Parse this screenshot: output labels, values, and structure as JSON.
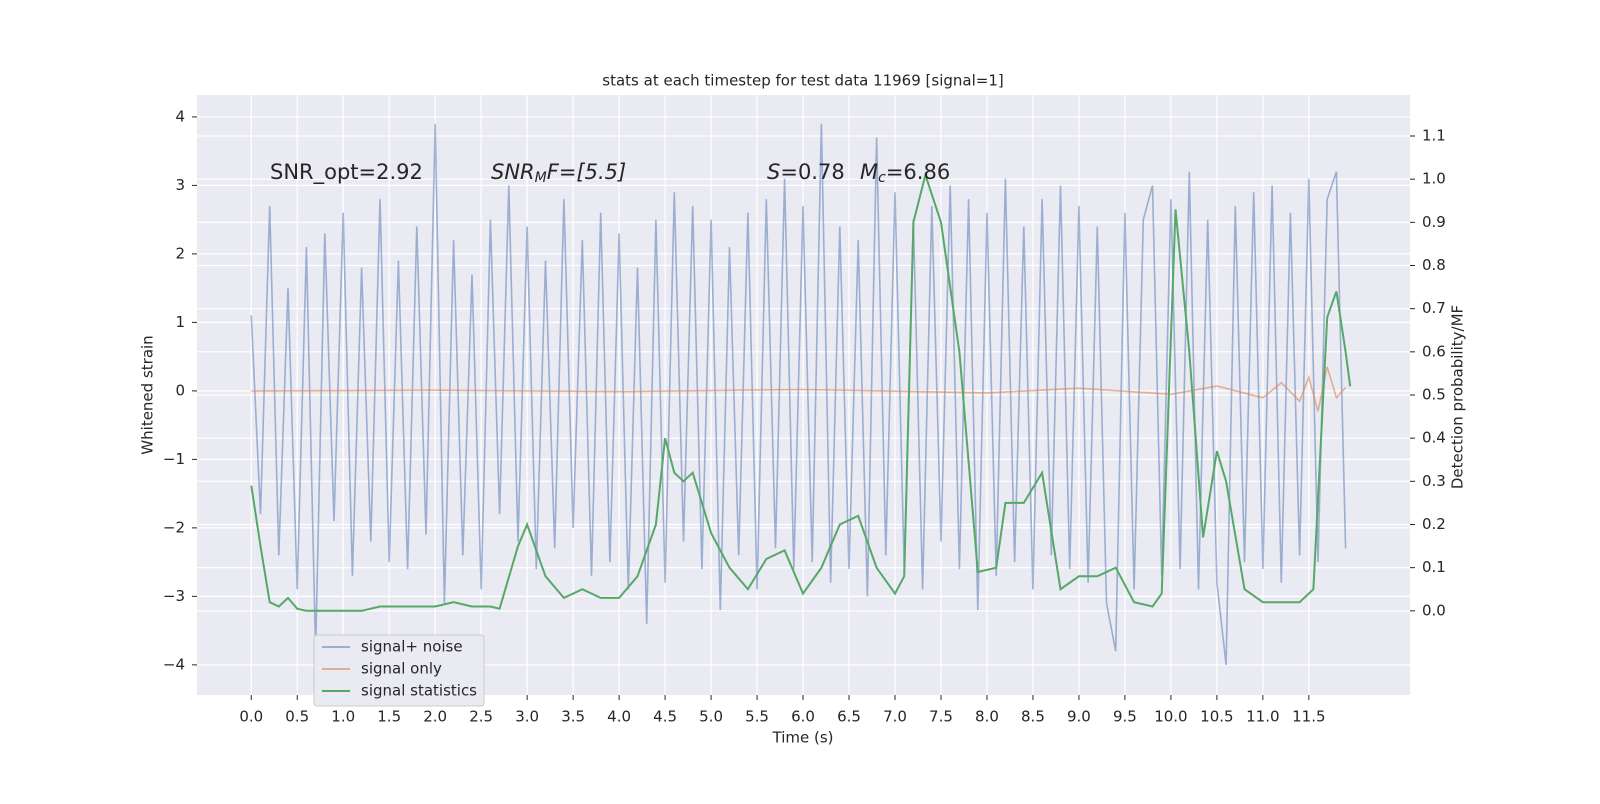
{
  "chart_data": {
    "type": "line",
    "title": "stats at each timestep for test data 11969 [signal=1]",
    "xlabel": "Time (s)",
    "ylabel": "Whitened strain",
    "y2label": "Detection probability/MF",
    "xlim": [
      -0.59,
      12.6
    ],
    "ylim": [
      -4.44,
      4.32
    ],
    "y2lim": [
      -0.195,
      1.195
    ],
    "xticks": [
      {
        "value": 0,
        "label": "0.0"
      },
      {
        "value": 0.5,
        "label": "0.5"
      },
      {
        "value": 1,
        "label": "1.0"
      },
      {
        "value": 1.5,
        "label": "1.5"
      },
      {
        "value": 2,
        "label": "2.0"
      },
      {
        "value": 2.5,
        "label": "2.5"
      },
      {
        "value": 3,
        "label": "3.0"
      },
      {
        "value": 3.5,
        "label": "3.5"
      },
      {
        "value": 4,
        "label": "4.0"
      },
      {
        "value": 4.5,
        "label": "4.5"
      },
      {
        "value": 5,
        "label": "5.0"
      },
      {
        "value": 5.5,
        "label": "5.5"
      },
      {
        "value": 6,
        "label": "6.0"
      },
      {
        "value": 6.5,
        "label": "6.5"
      },
      {
        "value": 7,
        "label": "7.0"
      },
      {
        "value": 7.5,
        "label": "7.5"
      },
      {
        "value": 8,
        "label": "8.0"
      },
      {
        "value": 8.5,
        "label": "8.5"
      },
      {
        "value": 9,
        "label": "9.0"
      },
      {
        "value": 9.5,
        "label": "9.5"
      },
      {
        "value": 10,
        "label": "10.0"
      },
      {
        "value": 10.5,
        "label": "10.5"
      },
      {
        "value": 11,
        "label": "11.0"
      },
      {
        "value": 11.5,
        "label": "11.5"
      }
    ],
    "yticks": [
      {
        "value": -4,
        "label": "−4"
      },
      {
        "value": -3,
        "label": "−3"
      },
      {
        "value": -2,
        "label": "−2"
      },
      {
        "value": -1,
        "label": "−1"
      },
      0,
      1,
      2,
      3,
      4
    ],
    "y2ticks": [
      {
        "value": 0,
        "label": "0.0"
      },
      0.1,
      0.2,
      0.3,
      0.4,
      0.5,
      0.6,
      0.7,
      0.8,
      0.9,
      {
        "value": 1,
        "label": "1.0"
      },
      1.1
    ],
    "grid": true,
    "annotations": [
      {
        "parts": [
          {
            "text": "SNR_opt=2.92",
            "style": "normal"
          }
        ]
      },
      {
        "parts": [
          {
            "text": "SNR",
            "style": "italic"
          },
          {
            "text": "M",
            "style": "italic-sub"
          },
          {
            "text": "F=[5.5]",
            "style": "italic-after-sub"
          }
        ]
      },
      {
        "parts": [
          {
            "text": "S",
            "style": "italic"
          },
          {
            "text": "=0.78",
            "style": "normal"
          }
        ]
      },
      {
        "parts": [
          {
            "text": "M",
            "style": "italic"
          },
          {
            "text": "c",
            "style": "italic-sub"
          },
          {
            "text": "=6.86",
            "style": "after-sub"
          }
        ]
      }
    ],
    "series": [
      {
        "name": "signal+ noise",
        "color": "#4c72b0",
        "opacity": 0.5,
        "x": [
          0,
          0.1,
          0.2,
          0.3,
          0.4,
          0.5,
          0.6,
          0.7,
          0.8,
          0.9,
          1,
          1.1,
          1.2,
          1.3,
          1.4,
          1.5,
          1.6,
          1.7,
          1.8,
          1.9,
          2,
          2.1,
          2.2,
          2.3,
          2.4,
          2.5,
          2.6,
          2.7,
          2.8,
          2.9,
          3,
          3.1,
          3.2,
          3.3,
          3.4,
          3.5,
          3.6,
          3.7,
          3.8,
          3.9,
          4,
          4.1,
          4.2,
          4.3,
          4.4,
          4.5,
          4.6,
          4.7,
          4.8,
          4.9,
          5,
          5.1,
          5.2,
          5.3,
          5.4,
          5.5,
          5.6,
          5.7,
          5.8,
          5.9,
          6,
          6.1,
          6.2,
          6.3,
          6.4,
          6.5,
          6.6,
          6.7,
          6.8,
          6.9,
          7,
          7.1,
          7.2,
          7.3,
          7.4,
          7.5,
          7.6,
          7.7,
          7.8,
          7.9,
          8,
          8.1,
          8.2,
          8.3,
          8.4,
          8.5,
          8.6,
          8.7,
          8.8,
          8.9,
          9,
          9.1,
          9.2,
          9.3,
          9.4,
          9.5,
          9.6,
          9.7,
          9.8,
          9.9,
          10,
          10.1,
          10.2,
          10.3,
          10.4,
          10.5,
          10.6,
          10.7,
          10.8,
          10.9,
          11,
          11.1,
          11.2,
          11.3,
          11.4,
          11.5,
          11.6,
          11.7,
          11.8,
          11.9
        ],
        "values": [
          1.1,
          -1.8,
          2.7,
          -2.4,
          1.5,
          -2.9,
          2.1,
          -3.8,
          2.3,
          -1.9,
          2.6,
          -2.7,
          1.8,
          -2.2,
          2.8,
          -2.5,
          1.9,
          -2.6,
          2.4,
          -2.1,
          3.9,
          -3.1,
          2.2,
          -2.4,
          1.7,
          -2.9,
          2.5,
          -1.8,
          3.0,
          -2.2,
          2.4,
          -2.6,
          1.9,
          -2.3,
          2.8,
          -2.0,
          2.2,
          -2.7,
          2.6,
          -2.5,
          2.3,
          -2.9,
          1.8,
          -3.4,
          2.5,
          -2.8,
          2.9,
          -2.2,
          2.7,
          -2.6,
          2.5,
          -3.2,
          2.1,
          -2.4,
          2.6,
          -2.9,
          2.8,
          -2.3,
          3.1,
          -2.6,
          2.7,
          -2.5,
          3.9,
          -2.8,
          2.4,
          -2.6,
          2.2,
          -3.0,
          3.7,
          -2.4,
          2.9,
          -2.6,
          2.5,
          -2.9,
          2.7,
          -2.2,
          3.0,
          -2.6,
          2.8,
          -3.2,
          2.6,
          -2.7,
          3.1,
          -2.5,
          2.4,
          -2.9,
          2.8,
          -2.4,
          3.0,
          -2.6,
          2.7,
          -2.8,
          2.4,
          -3.1,
          -3.8,
          2.6,
          -2.9,
          2.5,
          3.0,
          -2.7,
          2.8,
          -2.6,
          3.2,
          -2.9,
          2.5,
          -2.8,
          -4.0,
          2.7,
          -2.5,
          2.9,
          -2.6,
          3.0,
          -2.8,
          2.6,
          -2.4,
          3.1,
          -2.5,
          2.8,
          3.2,
          -2.3
        ]
      },
      {
        "name": "signal only",
        "color": "#dd8452",
        "opacity": 0.6,
        "x": [
          0,
          2,
          4,
          6,
          8,
          9,
          10,
          10.5,
          11,
          11.2,
          11.4,
          11.5,
          11.6,
          11.7,
          11.8,
          11.9
        ],
        "values": [
          0,
          0.01,
          -0.01,
          0.02,
          -0.03,
          0.04,
          -0.05,
          0.07,
          -0.1,
          0.12,
          -0.15,
          0.2,
          -0.3,
          0.35,
          -0.1,
          0.05
        ]
      },
      {
        "name": "signal statistics",
        "color": "#55a868",
        "opacity": 1,
        "axis": "y2",
        "x": [
          0,
          0.1,
          0.2,
          0.3,
          0.4,
          0.5,
          0.6,
          0.8,
          1,
          1.2,
          1.4,
          1.6,
          1.8,
          2,
          2.2,
          2.4,
          2.6,
          2.7,
          2.9,
          3,
          3.2,
          3.4,
          3.6,
          3.8,
          4,
          4.2,
          4.4,
          4.5,
          4.6,
          4.7,
          4.8,
          5,
          5.2,
          5.4,
          5.6,
          5.8,
          6,
          6.2,
          6.4,
          6.6,
          6.8,
          7,
          7.1,
          7.2,
          7.33,
          7.5,
          7.7,
          7.9,
          8.1,
          8.2,
          8.4,
          8.6,
          8.8,
          9,
          9.2,
          9.4,
          9.6,
          9.8,
          9.9,
          10.05,
          10.2,
          10.35,
          10.5,
          10.6,
          10.8,
          11,
          11.2,
          11.4,
          11.55,
          11.7,
          11.8,
          11.9,
          11.95
        ],
        "values": [
          0.29,
          0.15,
          0.02,
          0.01,
          0.03,
          0.005,
          0,
          0,
          0,
          0,
          0.01,
          0.01,
          0.01,
          0.01,
          0.02,
          0.01,
          0.01,
          0.005,
          0.15,
          0.2,
          0.08,
          0.03,
          0.05,
          0.03,
          0.03,
          0.08,
          0.2,
          0.4,
          0.32,
          0.3,
          0.32,
          0.18,
          0.1,
          0.05,
          0.12,
          0.14,
          0.04,
          0.1,
          0.2,
          0.22,
          0.1,
          0.04,
          0.08,
          0.9,
          1.01,
          0.9,
          0.6,
          0.09,
          0.1,
          0.25,
          0.25,
          0.32,
          0.05,
          0.08,
          0.08,
          0.1,
          0.02,
          0.01,
          0.04,
          0.93,
          0.6,
          0.17,
          0.37,
          0.3,
          0.05,
          0.02,
          0.02,
          0.02,
          0.05,
          0.68,
          0.74,
          0.6,
          0.52
        ]
      }
    ]
  }
}
